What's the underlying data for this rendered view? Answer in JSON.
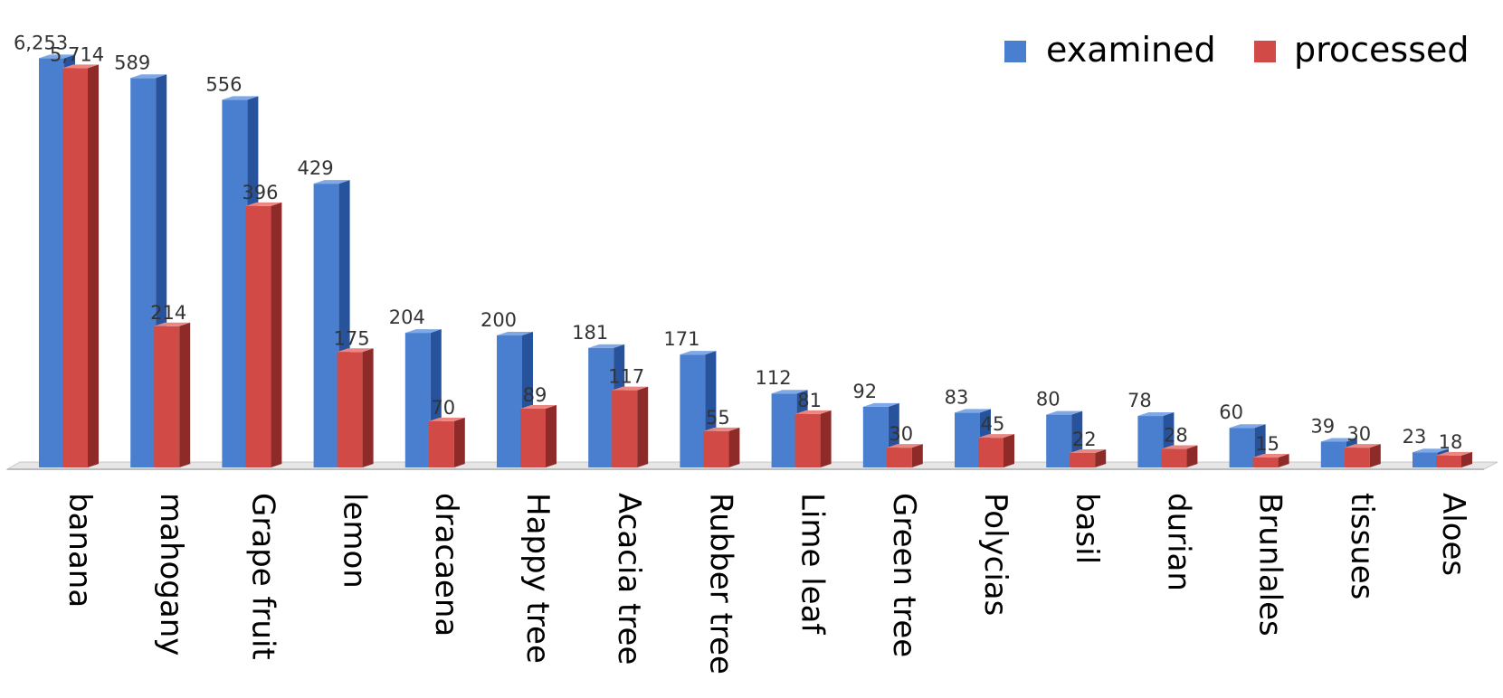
{
  "chart_data": {
    "type": "bar",
    "categories": [
      "banana",
      "mahogany",
      "Grape fruit",
      "lemon",
      "dracaena",
      "Happy tree",
      "Acacia tree",
      "Rubber tree",
      "Lime leaf",
      "Green tree",
      "Polycias",
      "basil",
      "durian",
      "Brunlales",
      "tissues",
      "Aloes"
    ],
    "series": [
      {
        "name": "examined",
        "values": [
          6253,
          589,
          556,
          429,
          204,
          200,
          181,
          171,
          112,
          92,
          83,
          80,
          78,
          60,
          39,
          23
        ],
        "labels": [
          "6,253",
          "589",
          "556",
          "429",
          "204",
          "200",
          "181",
          "171",
          "112",
          "92",
          "83",
          "80",
          "78",
          "60",
          "39",
          "23"
        ],
        "display_heights": [
          620,
          590,
          557,
          430,
          204,
          200,
          181,
          171,
          112,
          92,
          83,
          80,
          78,
          60,
          39,
          23
        ]
      },
      {
        "name": "processed",
        "values": [
          5714,
          214,
          396,
          175,
          70,
          89,
          117,
          55,
          81,
          30,
          45,
          22,
          28,
          15,
          30,
          18
        ],
        "labels": [
          "5,714",
          "214",
          "396",
          "175",
          "70",
          "89",
          "117",
          "55",
          "81",
          "30",
          "45",
          "22",
          "28",
          "15",
          "30",
          "18"
        ],
        "display_heights": [
          605,
          214,
          396,
          175,
          70,
          89,
          117,
          55,
          81,
          30,
          45,
          22,
          28,
          15,
          30,
          18
        ]
      }
    ],
    "legend_position": "top-right",
    "grid": false,
    "axis_break": "first-category values exceed the axis scale",
    "colors": {
      "examined": "#4a7fd0",
      "processed": "#d24a45"
    }
  }
}
